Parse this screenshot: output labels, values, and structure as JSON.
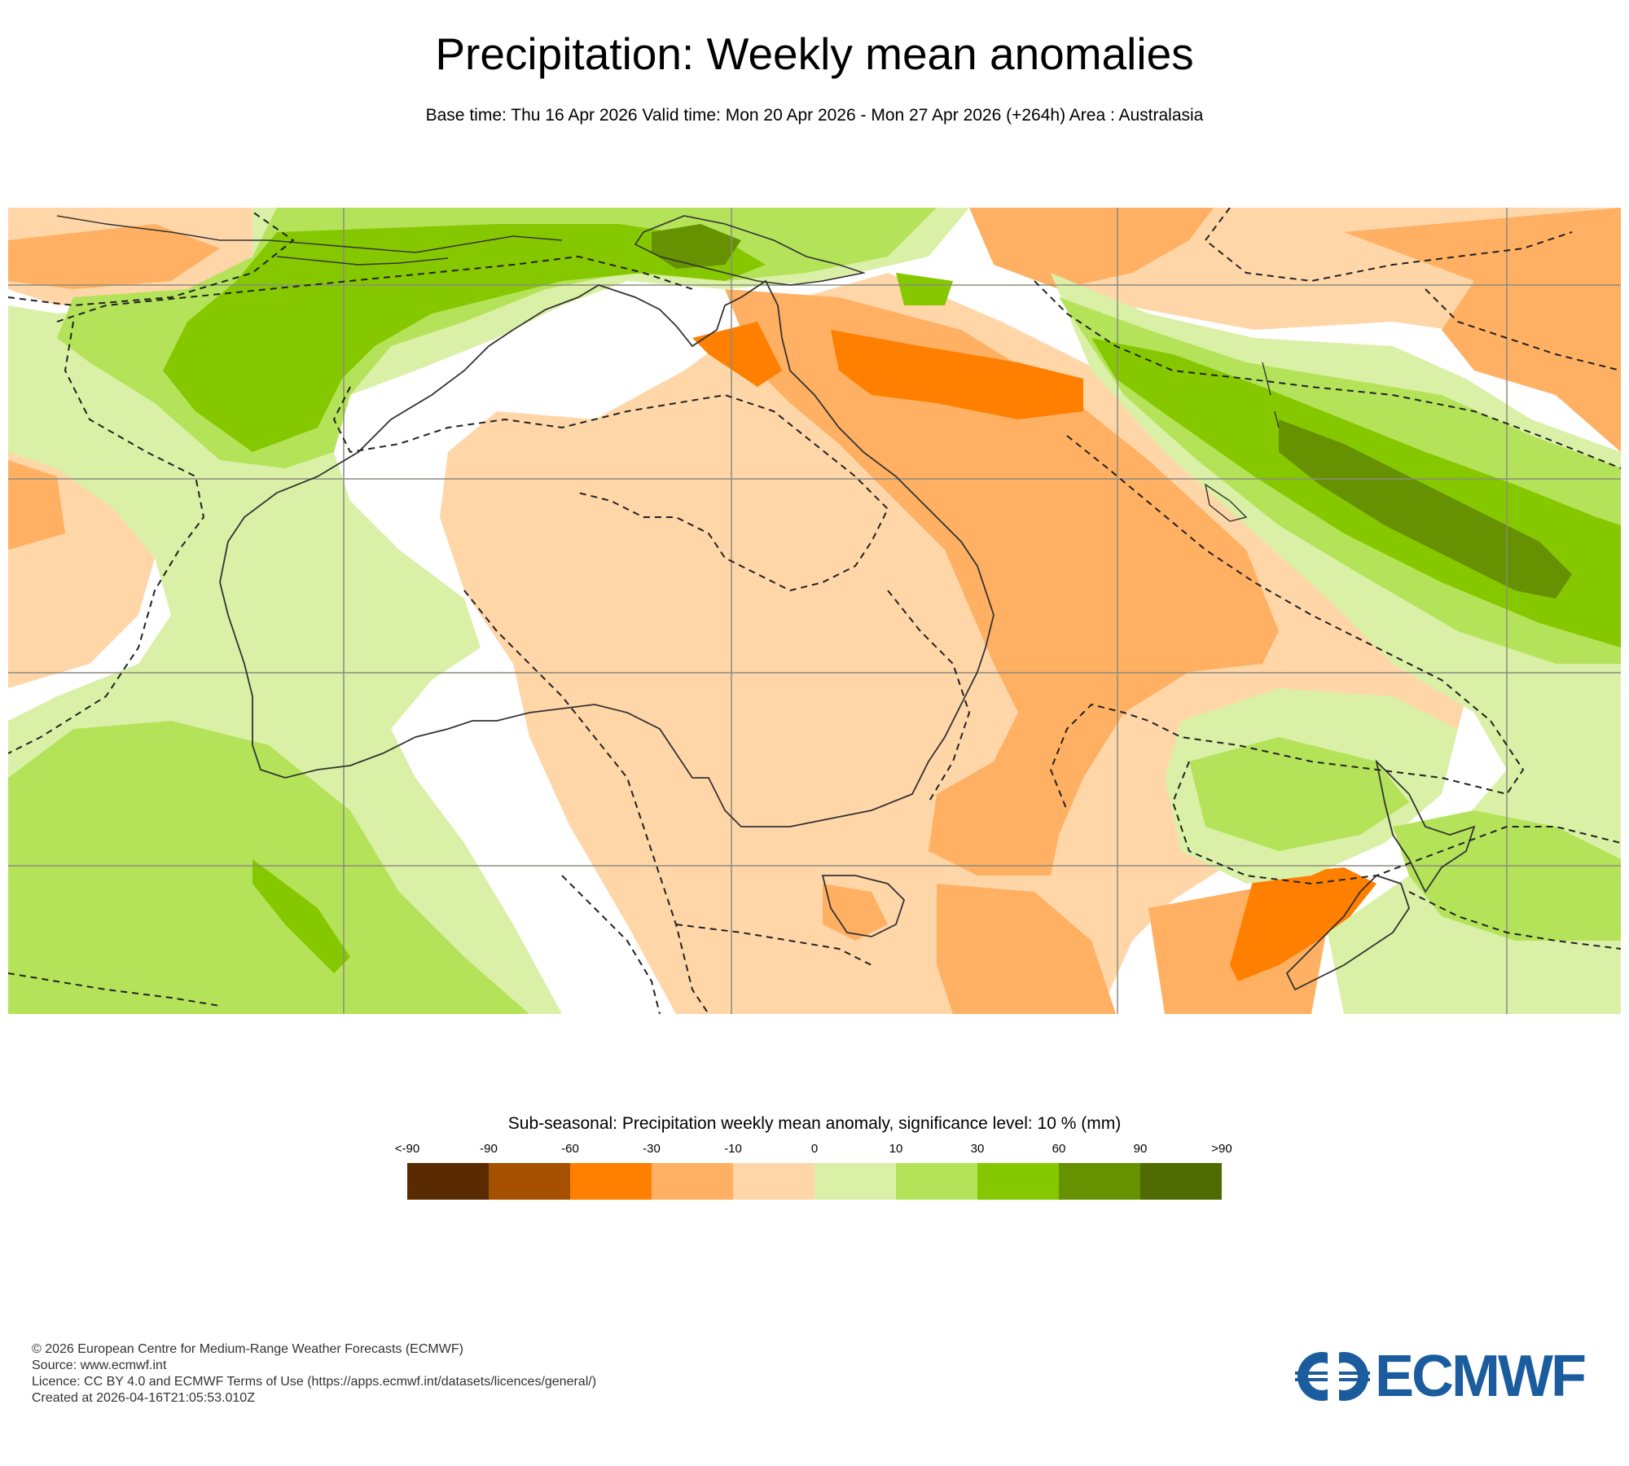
{
  "title": "Precipitation: Weekly mean anomalies",
  "subtitle": "Base time: Thu 16 Apr 2026 Valid time: Mon 20 Apr 2026 - Mon 27 Apr 2026 (+264h) Area : Australasia",
  "map": {
    "area": "Australasia",
    "variable": "Precipitation weekly mean anomaly",
    "significance_contour": "dashed black line"
  },
  "legend": {
    "title": "Sub-seasonal: Precipitation weekly mean anomaly, significance level: 10 % (mm)",
    "tick_labels": [
      "<-90",
      "-90",
      "-60",
      "-30",
      "-10",
      "0",
      "10",
      "30",
      "60",
      "90",
      ">90"
    ],
    "colors": [
      "#5a2a00",
      "#a65100",
      "#ff7f00",
      "#ffb062",
      "#ffd6a8",
      "#daf0a6",
      "#b4e35a",
      "#85c800",
      "#669100",
      "#4d6b00"
    ]
  },
  "footer": {
    "copyright": "© 2026 European Centre for Medium-Range Weather Forecasts (ECMWF)",
    "source": "Source: www.ecmwf.int",
    "licence": "Licence: CC BY 4.0 and ECMWF Terms of Use (https://apps.ecmwf.int/datasets/licences/general/)",
    "created": "Created at 2026-04-16T21:05:53.010Z"
  },
  "logo": {
    "text": "ECMWF",
    "color": "#1a5c9e"
  }
}
